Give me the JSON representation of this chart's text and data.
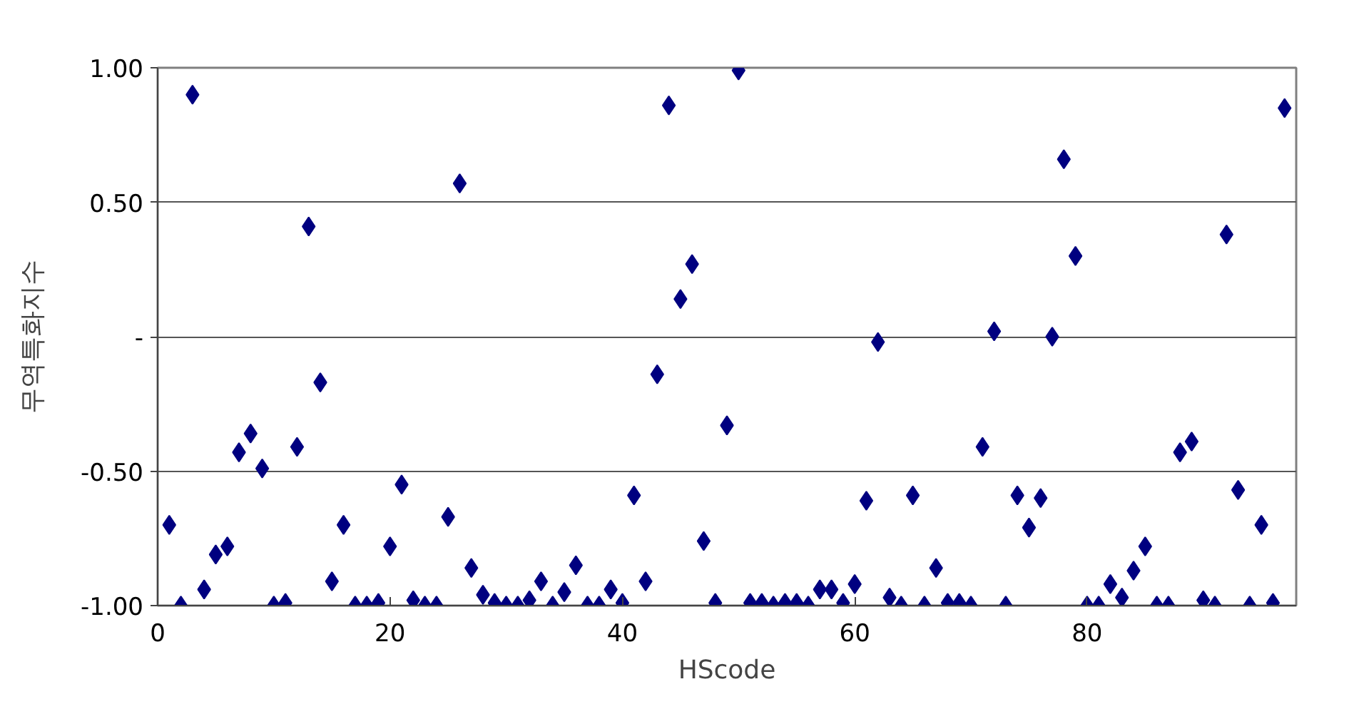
{
  "chart_data": {
    "type": "scatter",
    "xlabel": "HScode",
    "ylabel": "무역특화지수",
    "x": [
      1,
      2,
      3,
      4,
      5,
      6,
      7,
      8,
      9,
      10,
      11,
      12,
      13,
      14,
      15,
      16,
      17,
      18,
      19,
      20,
      21,
      22,
      23,
      24,
      25,
      26,
      27,
      28,
      29,
      30,
      31,
      32,
      33,
      34,
      35,
      36,
      37,
      38,
      39,
      40,
      41,
      42,
      43,
      44,
      45,
      46,
      47,
      48,
      49,
      50,
      51,
      52,
      53,
      54,
      55,
      56,
      57,
      58,
      59,
      60,
      61,
      62,
      63,
      64,
      65,
      66,
      67,
      68,
      69,
      70,
      71,
      72,
      73,
      74,
      75,
      76,
      77,
      78,
      79,
      80,
      81,
      82,
      83,
      84,
      85,
      86,
      87,
      88,
      89,
      90,
      91,
      92,
      93,
      94,
      95,
      96,
      97
    ],
    "series": [
      {
        "color": "#000080",
        "values": [
          -0.7,
          -1.0,
          0.9,
          -0.94,
          -0.81,
          -0.78,
          -0.43,
          -0.36,
          -0.49,
          -1.0,
          -0.99,
          -0.41,
          0.41,
          -0.17,
          -0.91,
          -0.7,
          -1.0,
          -1.0,
          -0.99,
          -0.78,
          -0.55,
          -0.98,
          -1.0,
          -1.0,
          -0.67,
          0.57,
          -0.86,
          -0.96,
          -0.99,
          -1.0,
          -1.0,
          -0.98,
          -0.91,
          -1.0,
          -0.95,
          -0.85,
          -1.0,
          -1.0,
          -0.94,
          -0.99,
          -0.59,
          -0.91,
          -0.14,
          0.86,
          0.14,
          0.27,
          -0.76,
          -0.99,
          -0.33,
          0.99,
          -0.99,
          -0.99,
          -1.0,
          -0.99,
          -0.99,
          -1.0,
          -0.94,
          -0.94,
          -0.99,
          -0.92,
          -0.61,
          -0.02,
          -0.97,
          -1.0,
          -0.59,
          -1.0,
          -0.86,
          -0.99,
          -0.99,
          -1.0,
          -0.41,
          0.02,
          -1.0,
          -0.59,
          -0.71,
          -0.6,
          0.0,
          0.66,
          0.3,
          -1.0,
          -1.0,
          -0.92,
          -0.97,
          -0.87,
          -0.78,
          -1.0,
          -1.0,
          -0.43,
          -0.39,
          -0.98,
          -1.0,
          0.38,
          -0.57,
          -1.0,
          -0.7,
          -0.99,
          0.85
        ]
      }
    ],
    "xlim": [
      0,
      98
    ],
    "xticks": [
      0,
      20,
      40,
      60,
      80
    ],
    "ylim": [
      -1,
      1
    ],
    "yticks": [
      {
        "value": -1,
        "label": "-1.00"
      },
      {
        "value": -0.5,
        "label": "-0.50"
      },
      {
        "value": 0,
        "label": "-"
      },
      {
        "value": 0.5,
        "label": "0.50"
      },
      {
        "value": 1,
        "label": "1.00"
      }
    ],
    "grid": "y",
    "marker": "diamond"
  }
}
